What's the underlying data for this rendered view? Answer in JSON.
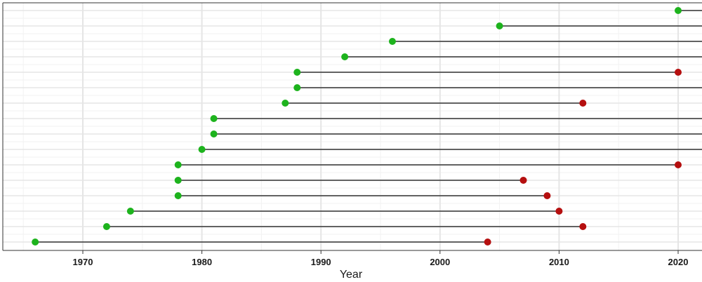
{
  "chart_data": {
    "type": "timeline",
    "xlabel": "Year",
    "xlim": [
      1964,
      2022
    ],
    "x_ticks": [
      1970,
      1980,
      1990,
      2000,
      2010,
      2020
    ],
    "grid": true,
    "colors": {
      "start": "#1db31d",
      "end": "#b50f0f",
      "segment": "#333333",
      "grid_major": "#e5e5e5",
      "grid_minor": "#f2f2f2",
      "frame": "#333333"
    },
    "rows": [
      {
        "start": 1966,
        "end": 2004
      },
      {
        "start": 1972,
        "end": 2012
      },
      {
        "start": 1974,
        "end": 2010
      },
      {
        "start": 1978,
        "end": 2009
      },
      {
        "start": 1978,
        "end": 2007
      },
      {
        "start": 1978,
        "end": 2020
      },
      {
        "start": 1980,
        "end": null
      },
      {
        "start": 1981,
        "end": null
      },
      {
        "start": 1981,
        "end": null
      },
      {
        "start": 1987,
        "end": 2012
      },
      {
        "start": 1988,
        "end": null
      },
      {
        "start": 1988,
        "end": 2020
      },
      {
        "start": 1992,
        "end": null
      },
      {
        "start": 1996,
        "end": null
      },
      {
        "start": 2005,
        "end": null
      },
      {
        "start": 2020,
        "end": null
      }
    ]
  }
}
